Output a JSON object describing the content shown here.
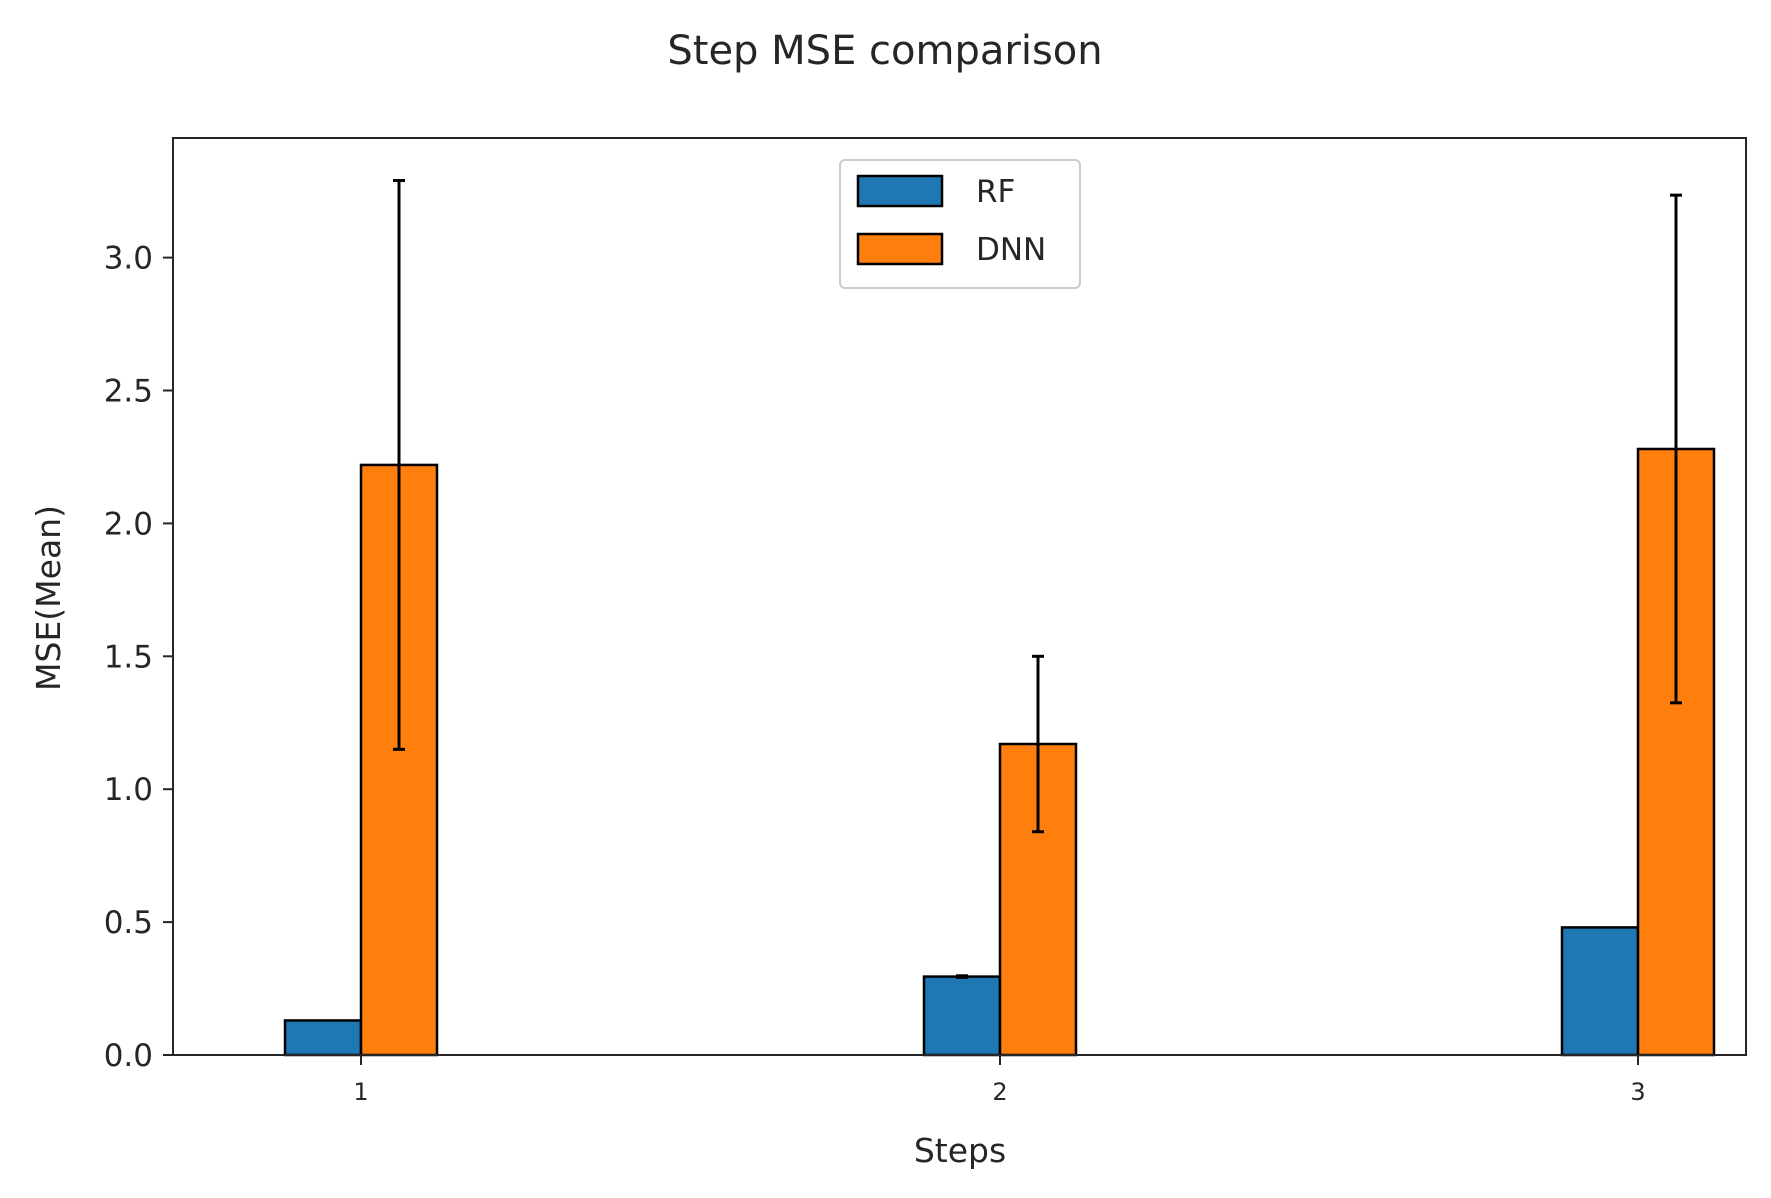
{
  "chart_data": {
    "type": "bar",
    "title": "Step MSE comparison",
    "xlabel": "Steps",
    "ylabel": "MSE(Mean)",
    "categories": [
      "1",
      "2",
      "3"
    ],
    "ylim": [
      0,
      3.45
    ],
    "yticks": [
      "0.0",
      "0.5",
      "1.0",
      "1.5",
      "2.0",
      "2.5",
      "3.0"
    ],
    "grid": false,
    "legend_position": "top-center",
    "series": [
      {
        "name": "RF",
        "color": "#1f77b4",
        "values": [
          0.13,
          0.295,
          0.48
        ],
        "errors": [
          0.0,
          0.003,
          0.0
        ]
      },
      {
        "name": "DNN",
        "color": "#ff7f0e",
        "values": [
          2.22,
          1.17,
          2.28
        ],
        "errors": [
          1.07,
          0.33,
          0.955
        ]
      }
    ]
  }
}
